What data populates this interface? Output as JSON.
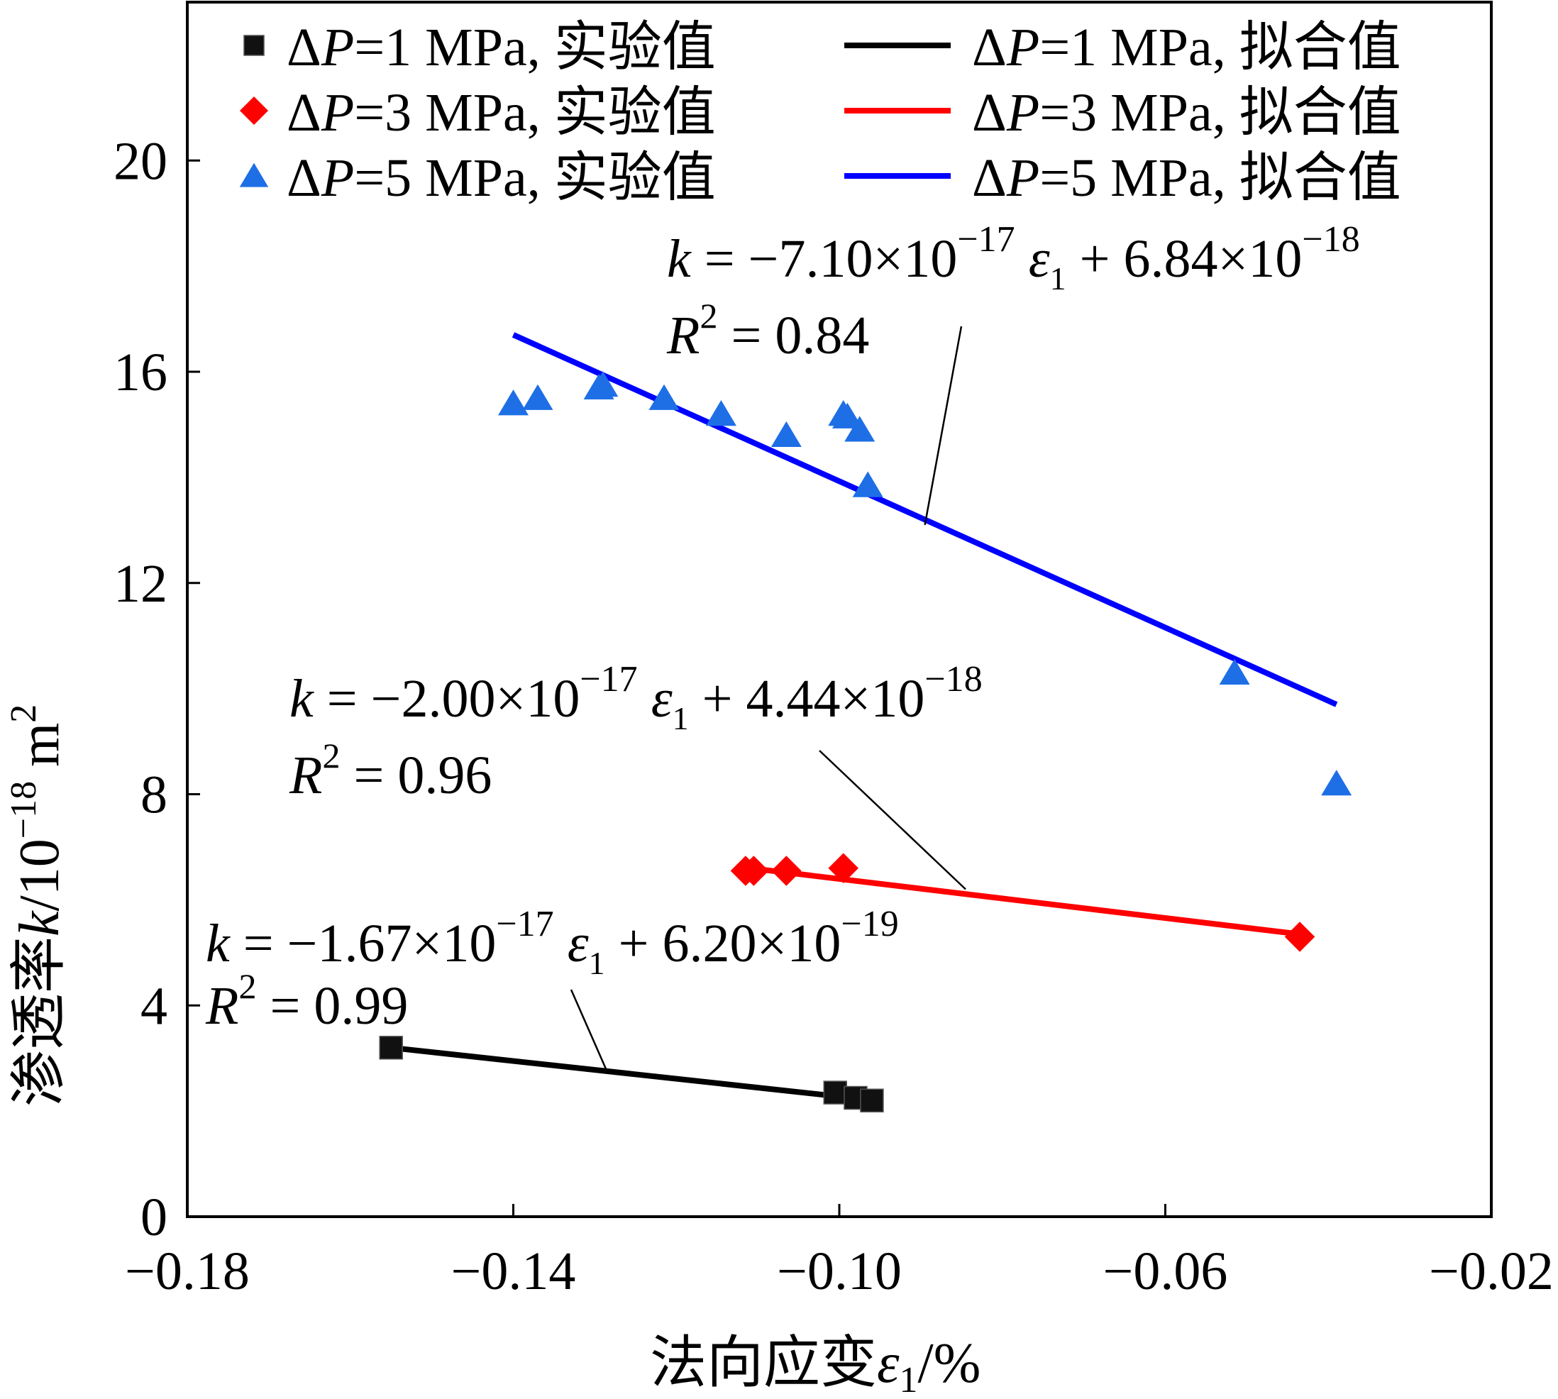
{
  "chart_data": {
    "type": "scatter",
    "xlabel": "法向应变ε1/%",
    "ylabel": "渗透率k/10−18 m2",
    "xlim": [
      -0.18,
      -0.02
    ],
    "ylim": [
      0,
      23
    ],
    "xticks": [
      -0.18,
      -0.14,
      -0.1,
      -0.06,
      -0.02
    ],
    "xtick_labels": [
      "−0.18",
      "−0.14",
      "−0.10",
      "−0.06",
      "−0.02"
    ],
    "yticks": [
      0,
      4,
      8,
      12,
      16,
      20
    ],
    "ytick_labels": [
      "0",
      "4",
      "8",
      "12",
      "16",
      "20"
    ],
    "legend_position": "top",
    "series": [
      {
        "name": "ΔP=1 MPa, 实验值",
        "kind": "scatter",
        "marker": "square",
        "color": "#111111",
        "points": [
          {
            "x": -0.155,
            "y": 3.2
          },
          {
            "x": -0.1005,
            "y": 2.35
          },
          {
            "x": -0.098,
            "y": 2.25
          },
          {
            "x": -0.096,
            "y": 2.2
          }
        ]
      },
      {
        "name": "ΔP=3 MPa, 实验值",
        "kind": "scatter",
        "marker": "diamond",
        "color": "#ff0000",
        "points": [
          {
            "x": -0.1115,
            "y": 6.55
          },
          {
            "x": -0.1105,
            "y": 6.55
          },
          {
            "x": -0.1065,
            "y": 6.55
          },
          {
            "x": -0.0995,
            "y": 6.6
          },
          {
            "x": -0.0435,
            "y": 5.3
          }
        ]
      },
      {
        "name": "ΔP=5 MPa, 实验值",
        "kind": "scatter",
        "marker": "triangle",
        "color": "#1e6fe6",
        "points": [
          {
            "x": -0.14,
            "y": 15.4
          },
          {
            "x": -0.137,
            "y": 15.5
          },
          {
            "x": -0.1295,
            "y": 15.7
          },
          {
            "x": -0.129,
            "y": 15.75
          },
          {
            "x": -0.1215,
            "y": 15.5
          },
          {
            "x": -0.1145,
            "y": 15.2
          },
          {
            "x": -0.1065,
            "y": 14.8
          },
          {
            "x": -0.0995,
            "y": 15.2
          },
          {
            "x": -0.099,
            "y": 15.15
          },
          {
            "x": -0.0975,
            "y": 14.9
          },
          {
            "x": -0.0965,
            "y": 13.85
          },
          {
            "x": -0.0515,
            "y": 10.3
          },
          {
            "x": -0.039,
            "y": 8.2
          }
        ]
      },
      {
        "name": "ΔP=1 MPa, 拟合值",
        "kind": "line",
        "color": "#000000",
        "points": [
          {
            "x": -0.155,
            "y": 3.2
          },
          {
            "x": -0.0955,
            "y": 2.2
          }
        ]
      },
      {
        "name": "ΔP=3 MPa, 拟合值",
        "kind": "line",
        "color": "#ff0000",
        "points": [
          {
            "x": -0.111,
            "y": 6.6
          },
          {
            "x": -0.0435,
            "y": 5.35
          }
        ]
      },
      {
        "name": "ΔP=5 MPa, 拟合值",
        "kind": "line",
        "color": "#0000ff",
        "points": [
          {
            "x": -0.14,
            "y": 16.7
          },
          {
            "x": -0.039,
            "y": 9.7
          }
        ]
      }
    ],
    "annotations": [
      {
        "series": "ΔP=5 MPa",
        "equation": {
          "coef_mant": "−7.10",
          "coef_exp": "−17",
          "intercept_mant": "6.84",
          "intercept_exp": "−18"
        },
        "r2_value": "0.84",
        "pointer_to": {
          "x": -0.0895,
          "y": 13.1
        }
      },
      {
        "series": "ΔP=3 MPa",
        "equation": {
          "coef_mant": "−2.00",
          "coef_exp": "−17",
          "intercept_mant": "4.44",
          "intercept_exp": "−18"
        },
        "r2_value": "0.96",
        "pointer_to": {
          "x": -0.0845,
          "y": 6.2
        }
      },
      {
        "series": "ΔP=1 MPa",
        "equation": {
          "coef_mant": "−1.67",
          "coef_exp": "−17",
          "intercept_mant": "6.20",
          "intercept_exp": "−19"
        },
        "r2_value": "0.99",
        "pointer_to": {
          "x": -0.1285,
          "y": 2.75
        }
      }
    ]
  },
  "text": {
    "eq_symbol_k": "k",
    "eq_equals": " = ",
    "eq_times_ten": "×10",
    "eq_epsilon": "ε",
    "eq_epsilon_sub": "1",
    "eq_plus": " + ",
    "r2_symbol": "R",
    "r2_exp": "2",
    "legend_delta": "Δ",
    "legend_p": "P",
    "ylabel_main": "渗透率",
    "ylabel_k": "k",
    "ylabel_unit": "/10",
    "ylabel_exp": "−18",
    "ylabel_m": " m",
    "ylabel_m_exp": "2",
    "xlabel_main": "法向应变",
    "xlabel_eps": "ε",
    "xlabel_eps_sub": "1",
    "xlabel_unit": "/%"
  }
}
